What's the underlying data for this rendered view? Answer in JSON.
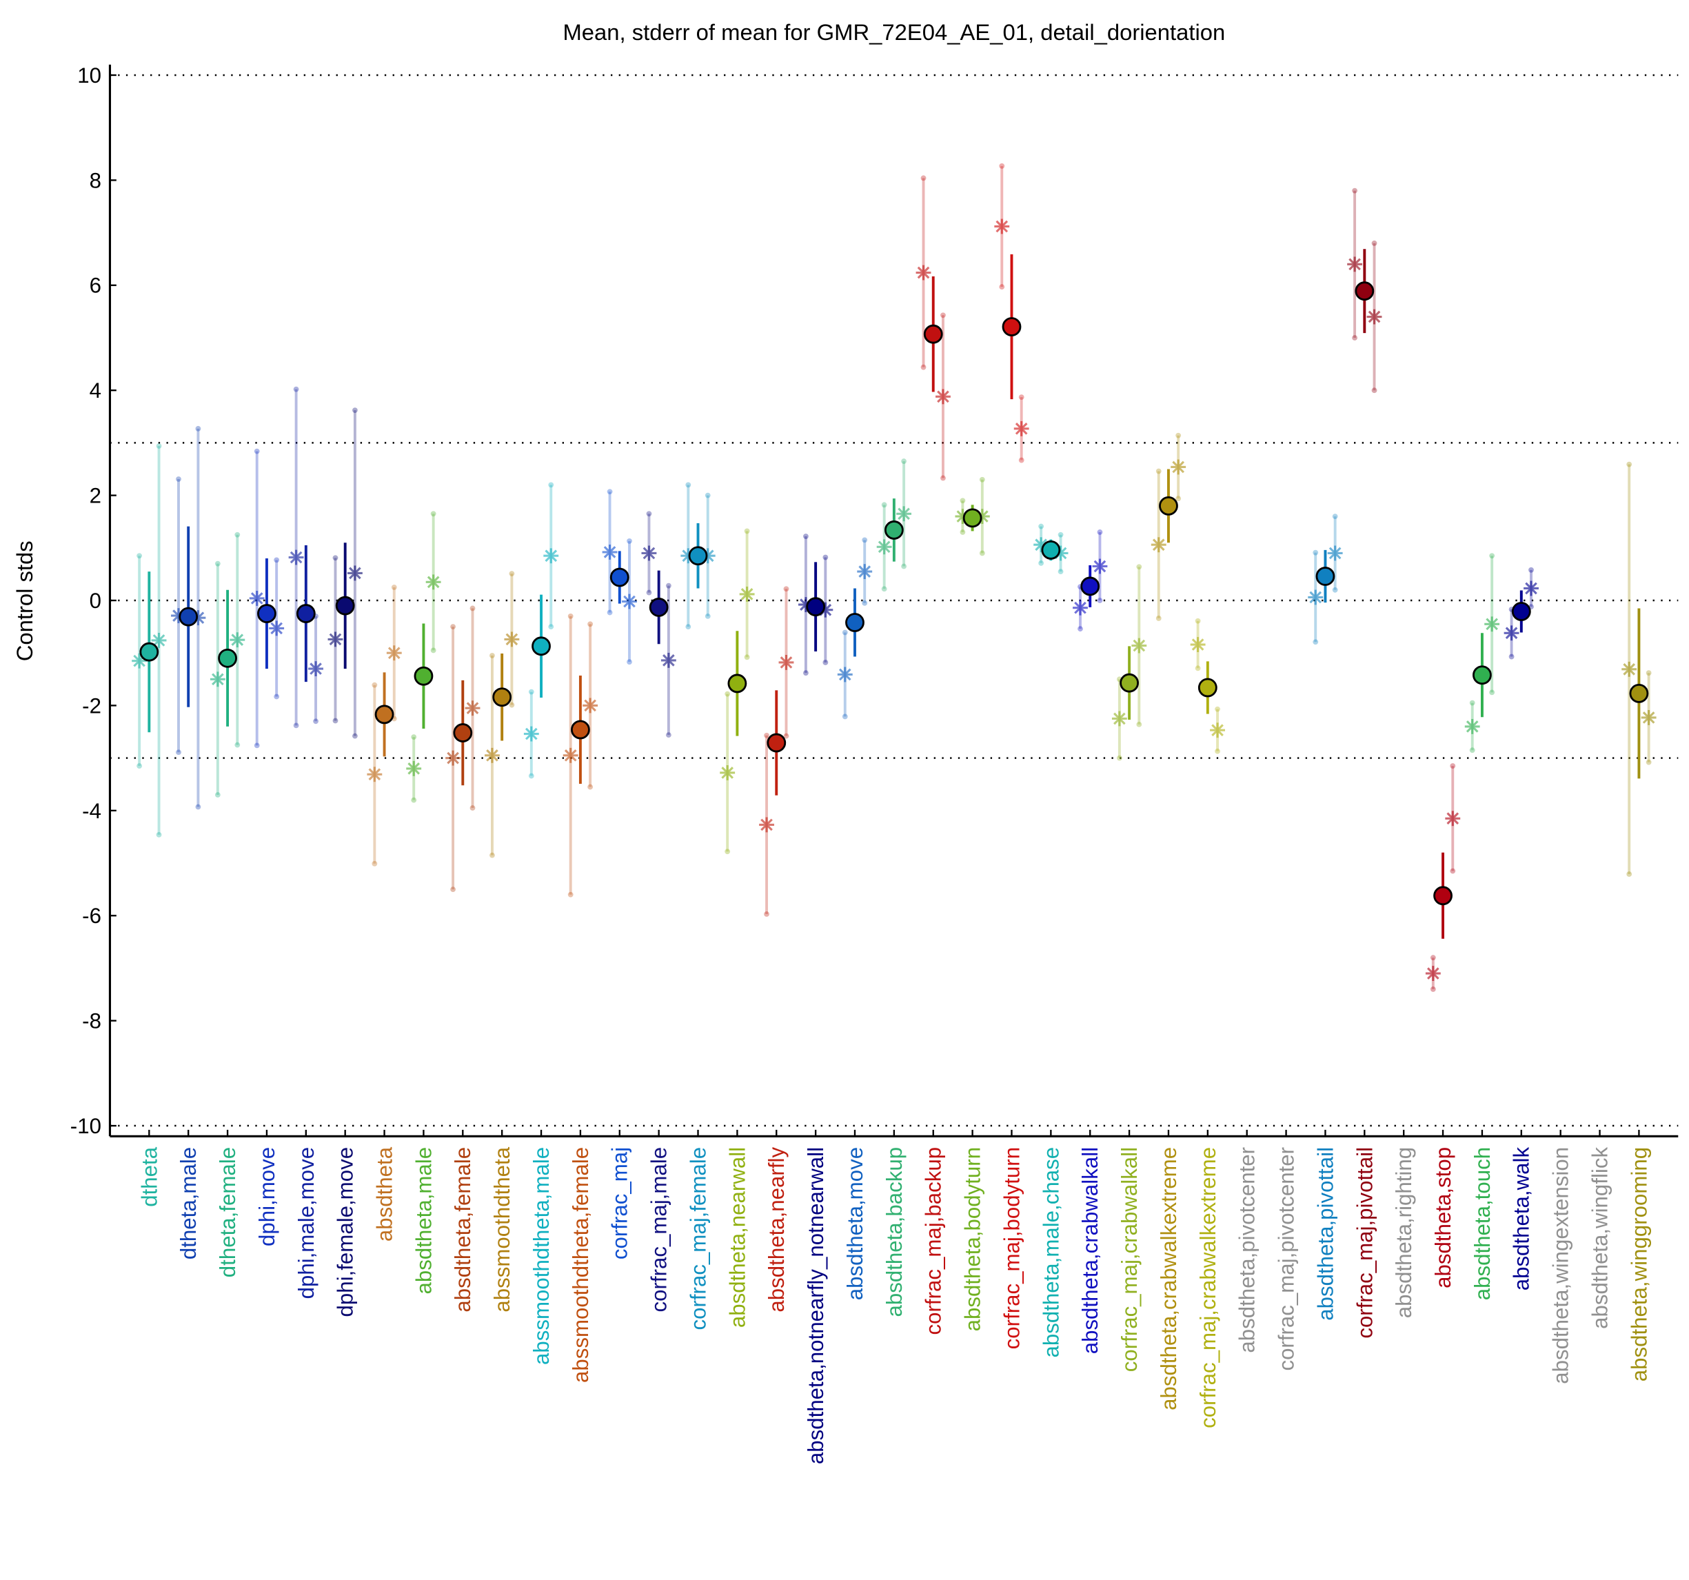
{
  "chart_data": {
    "type": "errorbar",
    "title": "Mean, stderr of mean for GMR_72E04_AE_01, detail_dorientation",
    "y_label": "Control stds",
    "categories": [
      "dtheta",
      "dtheta,male",
      "dtheta,female",
      "dphi,move",
      "dphi,male,move",
      "dphi,female,move",
      "absdtheta",
      "absdtheta,male",
      "absdtheta,female",
      "abssmoothdtheta",
      "abssmoothdtheta,male",
      "abssmoothdtheta,female",
      "corfrac_maj",
      "corfrac_maj,male",
      "corfrac_maj,female",
      "absdtheta,nearwall",
      "absdtheta,nearfly",
      "absdtheta,notnearfly_notnearwall",
      "absdtheta,move",
      "absdtheta,backup",
      "corfrac_maj,backup",
      "absdtheta,bodyturn",
      "corfrac_maj,bodyturn",
      "absdtheta,male,chase",
      "absdtheta,crabwalkall",
      "corfrac_maj,crabwalkall",
      "absdtheta,crabwalkextreme",
      "corfrac_maj,crabwalkextreme",
      "absdtheta,pivotcenter",
      "corfrac_maj,pivotcenter",
      "absdtheta,pivottail",
      "corfrac_maj,pivottail",
      "absdtheta,righting",
      "absdtheta,stop",
      "absdtheta,touch",
      "absdtheta,walk",
      "absdtheta,wingextension",
      "absdtheta,wingflick",
      "absdtheta,winggrooming"
    ],
    "colors": [
      "#1fb3a0",
      "#1040b0",
      "#20b080",
      "#1030c0",
      "#1020a0",
      "#0a0a70",
      "#c07020",
      "#50b030",
      "#b04010",
      "#b08010",
      "#10b0c0",
      "#c05010",
      "#1050d0",
      "#101080",
      "#1090c0",
      "#90b010",
      "#c02010",
      "#000080",
      "#1060c0",
      "#30b070",
      "#c01010",
      "#70b020",
      "#d01010",
      "#10b0b0",
      "#1010c0",
      "#90b020",
      "#b09010",
      "#b0b010",
      "#909090",
      "#909090",
      "#1080c0",
      "#900010",
      "#909090",
      "#b00010",
      "#30b050",
      "#000090",
      "#909090",
      "#909090",
      "#a09010"
    ],
    "values": [
      -0.98,
      -0.31,
      -1.1,
      -0.25,
      -0.25,
      -0.1,
      -2.17,
      -1.44,
      -2.52,
      -1.84,
      -0.87,
      -2.46,
      0.44,
      -0.13,
      0.85,
      -1.58,
      -2.71,
      -0.12,
      -0.42,
      1.34,
      5.07,
      1.57,
      5.21,
      0.96,
      0.27,
      -1.57,
      1.8,
      -1.66,
      null,
      null,
      0.46,
      5.89,
      null,
      -5.62,
      -1.42,
      -0.21,
      null,
      null,
      -1.77
    ],
    "errors": [
      1.53,
      1.72,
      1.3,
      1.05,
      1.3,
      1.2,
      0.8,
      1.0,
      1.0,
      0.83,
      0.98,
      1.03,
      0.5,
      0.7,
      0.62,
      1.0,
      1.0,
      0.85,
      0.65,
      0.6,
      1.1,
      0.25,
      1.38,
      0.2,
      0.4,
      0.7,
      0.7,
      0.5,
      null,
      null,
      0.5,
      0.8,
      null,
      0.82,
      0.8,
      0.4,
      null,
      null,
      1.62
    ],
    "left_values": [
      -1.15,
      -0.29,
      -1.5,
      0.04,
      0.82,
      -0.74,
      -3.31,
      -3.2,
      -3.0,
      -2.95,
      -2.54,
      -2.95,
      0.92,
      0.9,
      0.85,
      -3.28,
      -4.27,
      -0.08,
      -1.41,
      1.02,
      6.24,
      1.6,
      7.12,
      1.06,
      -0.14,
      -2.25,
      1.06,
      -0.84,
      null,
      null,
      0.06,
      6.4,
      null,
      -7.1,
      -2.4,
      -0.62,
      null,
      null,
      -1.31
    ],
    "left_errors": [
      2.0,
      2.6,
      2.2,
      2.8,
      3.2,
      1.55,
      1.7,
      0.6,
      2.5,
      1.9,
      0.8,
      2.65,
      1.15,
      0.75,
      1.35,
      1.5,
      1.7,
      1.3,
      0.8,
      0.8,
      1.8,
      0.3,
      1.15,
      0.35,
      0.4,
      0.75,
      1.4,
      0.45,
      null,
      null,
      0.85,
      1.4,
      null,
      0.3,
      0.45,
      0.45,
      null,
      null,
      3.9
    ],
    "right_values": [
      -0.76,
      -0.33,
      -0.75,
      -0.53,
      -1.3,
      0.52,
      -1.0,
      0.35,
      -2.05,
      -0.74,
      0.85,
      -2.0,
      -0.02,
      -1.14,
      0.85,
      0.12,
      -1.18,
      -0.18,
      0.55,
      1.65,
      3.88,
      1.6,
      3.27,
      0.9,
      0.65,
      -0.86,
      2.54,
      -2.47,
      null,
      null,
      0.9,
      5.4,
      null,
      -4.15,
      -0.45,
      0.23,
      null,
      null,
      -2.23
    ],
    "right_errors": [
      3.7,
      3.6,
      2.0,
      1.3,
      1.0,
      3.1,
      1.25,
      1.3,
      1.9,
      1.25,
      1.35,
      1.55,
      1.15,
      1.42,
      1.15,
      1.2,
      1.4,
      1.0,
      0.6,
      1.0,
      1.55,
      0.7,
      0.6,
      0.35,
      0.65,
      1.5,
      0.6,
      0.4,
      null,
      null,
      0.7,
      1.4,
      null,
      1.0,
      1.3,
      0.35,
      null,
      null,
      0.85
    ],
    "ylim": [
      -10.2,
      10.2
    ],
    "yticks": [
      -10,
      -8,
      -6,
      -4,
      -2,
      0,
      2,
      4,
      6,
      8,
      10
    ],
    "reference_lines": [
      -10,
      -3,
      0,
      3,
      10
    ]
  }
}
